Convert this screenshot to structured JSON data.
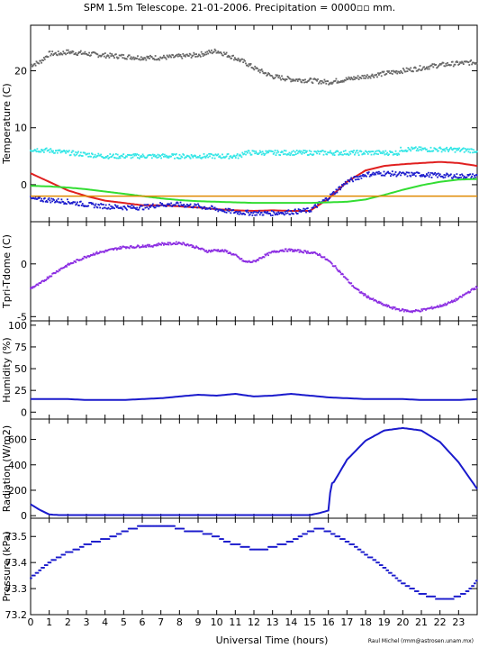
{
  "title": "SPM 1.5m Telescope. 21-01-2006. Precipitation = 0000▫▫ mm.",
  "credit": "Raul Michel (rmm@astrosen.unam.mx)",
  "chart_data": [
    {
      "type": "line",
      "id": "temperature",
      "ylabel": "Temperature (C)",
      "ylim": [
        -6.5,
        28
      ],
      "yticks": [
        0,
        10,
        20
      ],
      "xlim": [
        0,
        24
      ],
      "series": [
        {
          "color": "#666666",
          "style": "dots",
          "x": [
            0,
            0.5,
            1,
            1.5,
            2,
            3,
            4,
            5,
            6,
            7,
            8,
            9,
            10,
            10.8,
            11.5,
            12,
            13,
            14,
            15,
            16,
            17,
            18,
            19,
            20,
            21,
            22,
            23,
            24
          ],
          "y": [
            21,
            21.5,
            23,
            23,
            23.3,
            23,
            22.7,
            22.5,
            22.3,
            22.3,
            22.5,
            22.8,
            23.5,
            22.5,
            21.5,
            20.5,
            19,
            18.5,
            18.3,
            18,
            18.5,
            19,
            19.5,
            20,
            20.5,
            21,
            21.3,
            21.5
          ]
        },
        {
          "color": "#33e6e6",
          "style": "dots",
          "x": [
            0,
            1,
            2,
            3,
            4,
            5,
            6,
            7,
            8,
            9,
            10,
            11.3,
            11.4,
            12,
            13,
            14,
            15,
            16,
            17,
            18,
            19,
            19.8,
            19.9,
            20,
            21,
            22,
            23,
            24
          ],
          "y": [
            6.2,
            6,
            5.6,
            5.3,
            5,
            5,
            5,
            5,
            5,
            5,
            5,
            5,
            5.6,
            5.6,
            5.6,
            5.6,
            5.6,
            5.6,
            5.6,
            5.6,
            5.6,
            5.6,
            6.2,
            6.2,
            6.2,
            6.2,
            6.1,
            6
          ]
        },
        {
          "color": "#e02020",
          "style": "line",
          "x": [
            0,
            1,
            2,
            3,
            4,
            5,
            6,
            7,
            8,
            9,
            10,
            11,
            12,
            13,
            14,
            15,
            16,
            17,
            18,
            19,
            20,
            21,
            22,
            23,
            24
          ],
          "y": [
            2,
            0.5,
            -1,
            -2,
            -2.8,
            -3.2,
            -3.6,
            -3.6,
            -3.8,
            -4,
            -4.3,
            -4.5,
            -4.6,
            -4.5,
            -4.6,
            -4.6,
            -2.5,
            0.5,
            2.5,
            3.3,
            3.6,
            3.8,
            4,
            3.8,
            3.3
          ]
        },
        {
          "color": "#1a1acc",
          "style": "dots",
          "x": [
            0,
            1,
            2,
            3,
            4,
            5,
            6,
            7,
            8,
            9,
            10,
            11,
            12,
            13,
            14,
            15,
            16,
            17,
            18,
            19,
            20,
            21,
            22,
            23,
            24
          ],
          "y": [
            -2.5,
            -2.7,
            -3,
            -3.5,
            -3.8,
            -4,
            -4,
            -3.5,
            -3.5,
            -3.8,
            -4.3,
            -4.8,
            -5,
            -5,
            -4.8,
            -4.5,
            -2.3,
            0.5,
            1.8,
            2,
            1.8,
            1.8,
            1.6,
            1.5,
            1.5
          ]
        },
        {
          "color": "#33dd33",
          "style": "line",
          "x": [
            0,
            1,
            2,
            3,
            4,
            5,
            6,
            7,
            8,
            9,
            10,
            11,
            12,
            13,
            14,
            15,
            16,
            17,
            18,
            19,
            20,
            21,
            22,
            23,
            24
          ],
          "y": [
            -0.2,
            -0.3,
            -0.5,
            -0.8,
            -1.2,
            -1.6,
            -2,
            -2.4,
            -2.7,
            -2.9,
            -3,
            -3.1,
            -3.2,
            -3.2,
            -3.2,
            -3.2,
            -3.1,
            -3,
            -2.6,
            -1.8,
            -0.9,
            -0.1,
            0.5,
            0.9,
            1
          ]
        },
        {
          "color": "#e08a00",
          "style": "line",
          "x": [
            0,
            24
          ],
          "y": [
            -2,
            -2
          ]
        }
      ]
    },
    {
      "type": "scatter",
      "id": "tpri-tdome",
      "ylabel": "Tpri-Tdome (C)",
      "ylim": [
        -5.4,
        4
      ],
      "yticks": [
        -5,
        0
      ],
      "xlim": [
        0,
        24
      ],
      "series": [
        {
          "color": "#8a2be2",
          "x": [
            0,
            0.5,
            1,
            1.5,
            2,
            2.5,
            3,
            3.5,
            4,
            4.5,
            5,
            5.5,
            6,
            6.5,
            7,
            7.5,
            8,
            8.5,
            9,
            9.5,
            10,
            10.5,
            11,
            11.5,
            12,
            12.5,
            13,
            13.5,
            14,
            14.5,
            15,
            15.5,
            16,
            16.5,
            17,
            17.5,
            18,
            18.5,
            19,
            19.5,
            20,
            20.5,
            21,
            21.5,
            22,
            22.5,
            23,
            23.5,
            24
          ],
          "y": [
            -2.3,
            -1.9,
            -1.2,
            -0.6,
            -0.1,
            0.3,
            0.7,
            1,
            1.2,
            1.4,
            1.6,
            1.6,
            1.7,
            1.7,
            1.9,
            1.9,
            2,
            1.8,
            1.5,
            1.2,
            1.3,
            1.2,
            0.8,
            0.2,
            0.2,
            0.7,
            1.1,
            1.3,
            1.3,
            1.2,
            1.1,
            0.9,
            0.3,
            -0.5,
            -1.5,
            -2.4,
            -3,
            -3.5,
            -3.9,
            -4.2,
            -4.4,
            -4.5,
            -4.4,
            -4.2,
            -4,
            -3.7,
            -3.3,
            -2.7,
            -2.2
          ]
        }
      ]
    },
    {
      "type": "line",
      "id": "humidity",
      "ylabel": "Humidity (%)",
      "ylim": [
        -8,
        105
      ],
      "yticks": [
        0,
        25,
        50,
        75,
        100
      ],
      "xlim": [
        0,
        24
      ],
      "series": [
        {
          "color": "#1a1acc",
          "x": [
            0,
            1,
            2,
            3,
            4,
            5,
            6,
            7,
            8,
            9,
            10,
            11,
            12,
            13,
            14,
            15,
            16,
            17,
            18,
            19,
            20,
            21,
            22,
            23,
            24
          ],
          "y": [
            15,
            15,
            15,
            14,
            14,
            14,
            15,
            16,
            18,
            20,
            19,
            21,
            18,
            19,
            21,
            19,
            17,
            16,
            15,
            15,
            15,
            14,
            14,
            14,
            15
          ]
        }
      ]
    },
    {
      "type": "line",
      "id": "radiation",
      "ylabel": "Radiation (W/m2)",
      "ylim": [
        -20,
        760
      ],
      "yticks": [
        0,
        200,
        400,
        600
      ],
      "xlim": [
        0,
        24
      ],
      "series": [
        {
          "color": "#1a1acc",
          "x": [
            0,
            0.5,
            1,
            1.5,
            2,
            4,
            6,
            8,
            10,
            12,
            14,
            15,
            15.5,
            16,
            16.1,
            16.2,
            16.3,
            17,
            18,
            19,
            20,
            21,
            22,
            23,
            24
          ],
          "y": [
            90,
            45,
            10,
            5,
            5,
            5,
            5,
            5,
            5,
            5,
            5,
            5,
            20,
            40,
            180,
            255,
            265,
            440,
            590,
            670,
            690,
            670,
            580,
            420,
            210
          ]
        }
      ]
    },
    {
      "type": "scatter",
      "id": "pressure",
      "ylabel": "Pressure (kPa)",
      "ylim": [
        73.2,
        73.57
      ],
      "yticks": [
        73.2,
        73.3,
        73.4,
        73.5
      ],
      "xlim": [
        0,
        24
      ],
      "xlabel": "Universal Time (hours)",
      "xticks": [
        0,
        1,
        2,
        3,
        4,
        5,
        6,
        7,
        8,
        9,
        10,
        11,
        12,
        13,
        14,
        15,
        16,
        17,
        18,
        19,
        20,
        21,
        22,
        23
      ],
      "series": [
        {
          "color": "#1a1acc",
          "x": [
            0,
            0.5,
            1,
            1.5,
            2,
            2.5,
            3,
            3.5,
            4,
            4.5,
            5,
            5.5,
            6,
            6.5,
            7,
            7.5,
            8,
            8.5,
            9,
            9.5,
            10,
            10.5,
            11,
            11.5,
            12,
            12.5,
            13,
            13.5,
            14,
            14.5,
            15,
            15.5,
            16,
            16.5,
            17,
            17.5,
            18,
            18.5,
            19,
            19.5,
            20,
            20.5,
            21,
            21.5,
            22,
            22.5,
            23,
            23.5,
            24
          ],
          "y": [
            73.34,
            73.37,
            73.4,
            73.42,
            73.44,
            73.45,
            73.47,
            73.48,
            73.49,
            73.5,
            73.52,
            73.53,
            73.54,
            73.54,
            73.54,
            73.54,
            73.53,
            73.52,
            73.52,
            73.51,
            73.5,
            73.48,
            73.47,
            73.46,
            73.45,
            73.45,
            73.46,
            73.47,
            73.48,
            73.5,
            73.52,
            73.53,
            73.52,
            73.5,
            73.48,
            73.46,
            73.43,
            73.41,
            73.38,
            73.35,
            73.32,
            73.3,
            73.28,
            73.27,
            73.26,
            73.26,
            73.27,
            73.29,
            73.33
          ]
        }
      ]
    }
  ]
}
